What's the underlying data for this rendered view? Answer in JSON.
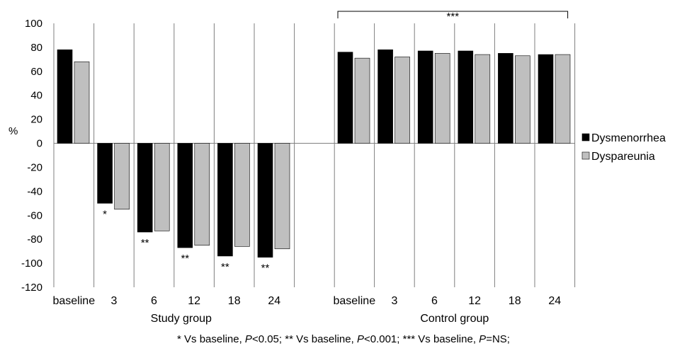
{
  "chart_data": {
    "type": "bar",
    "ylabel": "%",
    "ylim": [
      -120,
      100
    ],
    "y_ticks": [
      100,
      80,
      60,
      40,
      20,
      0,
      -20,
      -40,
      -60,
      -80,
      -100,
      -120
    ],
    "grid": false,
    "legend_position": "right",
    "series": [
      {
        "name": "Dysmenorrhea",
        "color": "#000000"
      },
      {
        "name": "Dyspareunia",
        "color": "#bfbfbf"
      }
    ],
    "groups": [
      {
        "label": "Study group",
        "categories": [
          "baseline",
          "3",
          "6",
          "12",
          "18",
          "24"
        ],
        "values": {
          "Dysmenorrhea": [
            78,
            -50,
            -74,
            -87,
            -94,
            -95
          ],
          "Dyspareunia": [
            68,
            -55,
            -73,
            -85,
            -86,
            -88
          ]
        },
        "annotations": [
          "",
          "*",
          "**",
          "**",
          "**",
          "**"
        ]
      },
      {
        "label": "Control group",
        "categories": [
          "baseline",
          "3",
          "6",
          "12",
          "18",
          "24"
        ],
        "values": {
          "Dysmenorrhea": [
            76,
            78,
            77,
            77,
            75,
            74
          ],
          "Dyspareunia": [
            71,
            72,
            75,
            74,
            73,
            74
          ]
        },
        "bracket_label": "***"
      }
    ]
  },
  "footnote": {
    "part1": "* Vs baseline, ",
    "p1": "P",
    "part2": "<0.05;   ** Vs baseline, ",
    "p2": "P",
    "part3": "<0.001;   *** Vs baseline, ",
    "p3": "P",
    "part4": "=NS;"
  }
}
